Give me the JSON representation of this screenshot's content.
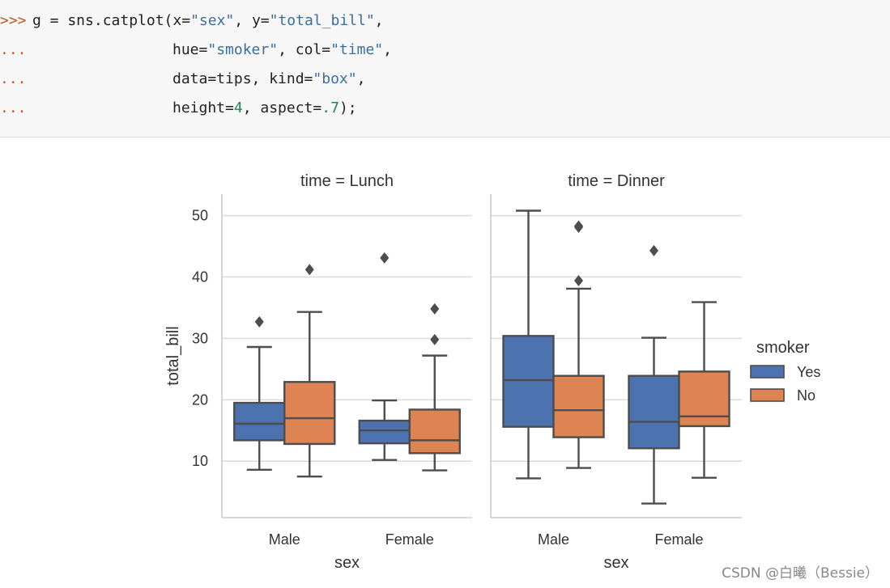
{
  "code": {
    "prompts": [
      ">>>",
      "...",
      "...",
      "..."
    ],
    "lines": [
      [
        {
          "t": "g = sns.catplot(x="
        },
        {
          "t": "\"sex\"",
          "c": "str"
        },
        {
          "t": ", y="
        },
        {
          "t": "\"total_bill\"",
          "c": "str"
        },
        {
          "t": ","
        }
      ],
      [
        {
          "t": "hue="
        },
        {
          "t": "\"smoker\"",
          "c": "str"
        },
        {
          "t": ", col="
        },
        {
          "t": "\"time\"",
          "c": "str"
        },
        {
          "t": ","
        }
      ],
      [
        {
          "t": "data=tips, kind="
        },
        {
          "t": "\"box\"",
          "c": "str"
        },
        {
          "t": ","
        }
      ],
      [
        {
          "t": "height="
        },
        {
          "t": "4",
          "c": "num"
        },
        {
          "t": ", aspect="
        },
        {
          "t": ".7",
          "c": "num"
        },
        {
          "t": ");"
        }
      ]
    ]
  },
  "chart_data": {
    "type": "box",
    "ylabel": "total_bill",
    "xlabel": "sex",
    "categories": [
      "Male",
      "Female"
    ],
    "yticks": [
      10,
      20,
      30,
      40,
      50
    ],
    "ylim": [
      0.8,
      53.5
    ],
    "grid": true,
    "legend": {
      "title": "smoker",
      "placement": "right",
      "entries": [
        {
          "label": "Yes",
          "color": "#4c72b0"
        },
        {
          "label": "No",
          "color": "#dd8452"
        }
      ]
    },
    "facets": [
      {
        "title": "time = Lunch",
        "boxes": [
          {
            "category": "Male",
            "smoker": "Yes",
            "whisker_low": 8.6,
            "q1": 13.4,
            "median": 16.1,
            "q3": 19.5,
            "whisker_high": 28.6,
            "outliers": [
              32.7
            ]
          },
          {
            "category": "Male",
            "smoker": "No",
            "whisker_low": 7.5,
            "q1": 12.8,
            "median": 17.0,
            "q3": 22.9,
            "whisker_high": 34.3,
            "outliers": [
              41.2
            ]
          },
          {
            "category": "Female",
            "smoker": "Yes",
            "whisker_low": 10.2,
            "q1": 12.9,
            "median": 15.0,
            "q3": 16.6,
            "whisker_high": 19.9,
            "outliers": [
              43.1
            ]
          },
          {
            "category": "Female",
            "smoker": "No",
            "whisker_low": 8.5,
            "q1": 11.3,
            "median": 13.4,
            "q3": 18.4,
            "whisker_high": 27.2,
            "outliers": [
              29.8,
              34.8
            ]
          }
        ]
      },
      {
        "title": "time = Dinner",
        "boxes": [
          {
            "category": "Male",
            "smoker": "Yes",
            "whisker_low": 7.2,
            "q1": 15.6,
            "median": 23.2,
            "q3": 30.4,
            "whisker_high": 50.8,
            "outliers": []
          },
          {
            "category": "Male",
            "smoker": "No",
            "whisker_low": 8.9,
            "q1": 13.9,
            "median": 18.3,
            "q3": 23.9,
            "whisker_high": 38.1,
            "outliers": [
              39.4,
              48.3,
              48.1
            ]
          },
          {
            "category": "Female",
            "smoker": "Yes",
            "whisker_low": 3.1,
            "q1": 12.1,
            "median": 16.4,
            "q3": 23.9,
            "whisker_high": 30.1,
            "outliers": [
              44.3
            ]
          },
          {
            "category": "Female",
            "smoker": "No",
            "whisker_low": 7.3,
            "q1": 15.7,
            "median": 17.3,
            "q3": 24.6,
            "whisker_high": 35.9,
            "outliers": []
          }
        ]
      }
    ]
  },
  "watermark": "CSDN @白曦（Bessie）"
}
